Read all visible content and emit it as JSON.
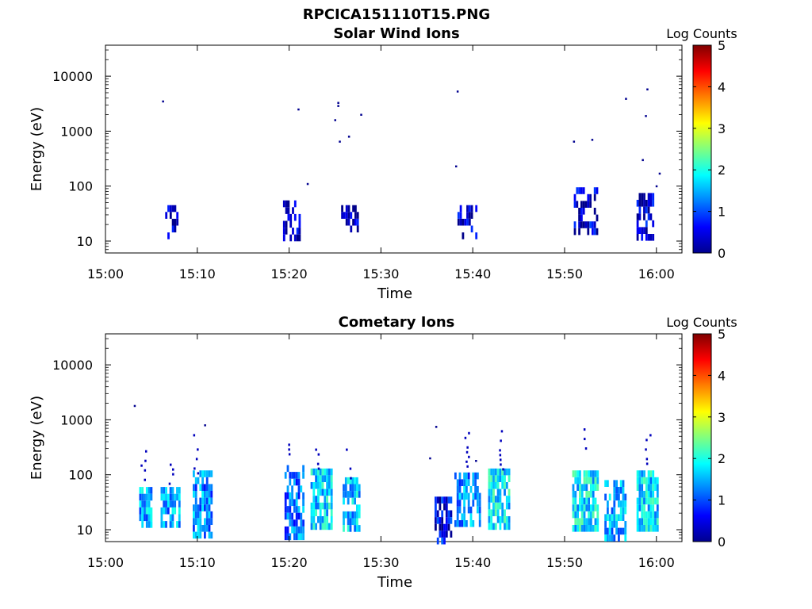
{
  "figure_title": "RPCICA151110T15.PNG",
  "chart_data": [
    {
      "type": "heatmap",
      "title": "Solar Wind Ions",
      "xlabel": "Time",
      "ylabel": "Energy (eV)",
      "x_ticks": [
        "15:00",
        "15:10",
        "15:20",
        "15:30",
        "15:40",
        "15:50",
        "16:00"
      ],
      "y_ticks": [
        "10",
        "100",
        "1000",
        "10000"
      ],
      "y_scale": "log",
      "x_range": [
        "15:00",
        "16:03"
      ],
      "y_range": [
        6,
        45000
      ],
      "colorbar": {
        "label": "Log Counts",
        "ticks": [
          "0",
          "1",
          "2",
          "3",
          "4",
          "5"
        ],
        "range": [
          0,
          5
        ],
        "colormap": "jet"
      },
      "clusters": [
        {
          "t": [
            "15:06:30",
            "15:07:50"
          ],
          "e": [
            12,
            45
          ],
          "level": 0.3,
          "density": 0.5
        },
        {
          "t": [
            "15:19:20",
            "15:21:30"
          ],
          "e": [
            12,
            55
          ],
          "level": 0.3,
          "density": 0.45
        },
        {
          "t": [
            "15:25:40",
            "15:27:30"
          ],
          "e": [
            17,
            45
          ],
          "level": 0.3,
          "density": 0.6
        },
        {
          "t": [
            "15:38:20",
            "15:40:30"
          ],
          "e": [
            11,
            45
          ],
          "level": 0.3,
          "density": 0.45
        },
        {
          "t": [
            "15:51:00",
            "15:53:30"
          ],
          "e": [
            16,
            95
          ],
          "level": 0.4,
          "density": 0.6
        },
        {
          "t": [
            "15:57:50",
            "15:59:40"
          ],
          "e": [
            11,
            75
          ],
          "level": 0.4,
          "density": 0.6
        }
      ],
      "points": [
        {
          "t": "15:06:15",
          "e": 3500
        },
        {
          "t": "15:21:00",
          "e": 2500
        },
        {
          "t": "15:22:00",
          "e": 110
        },
        {
          "t": "15:25:00",
          "e": 1600
        },
        {
          "t": "15:25:20",
          "e": 3300
        },
        {
          "t": "15:25:20",
          "e": 2900
        },
        {
          "t": "15:25:30",
          "e": 650
        },
        {
          "t": "15:26:30",
          "e": 800
        },
        {
          "t": "15:27:50",
          "e": 2000
        },
        {
          "t": "15:38:20",
          "e": 5300
        },
        {
          "t": "15:38:10",
          "e": 230
        },
        {
          "t": "15:51:00",
          "e": 650
        },
        {
          "t": "15:53:00",
          "e": 700
        },
        {
          "t": "15:56:40",
          "e": 3900
        },
        {
          "t": "15:59:00",
          "e": 5800
        },
        {
          "t": "15:58:50",
          "e": 1900
        },
        {
          "t": "15:58:30",
          "e": 300
        },
        {
          "t": "16:00:00",
          "e": 100
        },
        {
          "t": "16:00:20",
          "e": 170
        }
      ]
    },
    {
      "type": "heatmap",
      "title": "Cometary Ions",
      "xlabel": "Time",
      "ylabel": "Energy (eV)",
      "x_ticks": [
        "15:00",
        "15:10",
        "15:20",
        "15:30",
        "15:40",
        "15:50",
        "16:00"
      ],
      "y_ticks": [
        "10",
        "100",
        "1000",
        "10000"
      ],
      "y_scale": "log",
      "x_range": [
        "15:00",
        "16:03"
      ],
      "y_range": [
        6,
        45000
      ],
      "colorbar": {
        "label": "Log Counts",
        "ticks": [
          "0",
          "1",
          "2",
          "3",
          "4",
          "5"
        ],
        "range": [
          0,
          5
        ],
        "colormap": "jet"
      },
      "clusters": [
        {
          "t": [
            "15:03:40",
            "15:05:00"
          ],
          "e": [
            12,
            60
          ],
          "level": 1.5,
          "density": 0.85
        },
        {
          "t": [
            "15:06:00",
            "15:08:10"
          ],
          "e": [
            12,
            60
          ],
          "level": 1.4,
          "density": 0.8
        },
        {
          "t": [
            "15:09:30",
            "15:11:30"
          ],
          "e": [
            7,
            120
          ],
          "level": 1.3,
          "density": 0.75
        },
        {
          "t": [
            "15:19:30",
            "15:21:40"
          ],
          "e": [
            7,
            150
          ],
          "level": 1.2,
          "density": 0.7
        },
        {
          "t": [
            "15:22:20",
            "15:24:40"
          ],
          "e": [
            12,
            130
          ],
          "level": 1.7,
          "density": 0.8
        },
        {
          "t": [
            "15:25:50",
            "15:27:40"
          ],
          "e": [
            12,
            90
          ],
          "level": 1.6,
          "density": 0.8
        },
        {
          "t": [
            "15:35:50",
            "15:37:40"
          ],
          "e": [
            7,
            40
          ],
          "level": 0.6,
          "density": 0.75
        },
        {
          "t": [
            "15:38:00",
            "15:40:50"
          ],
          "e": [
            12,
            110
          ],
          "level": 1.3,
          "density": 0.7
        },
        {
          "t": [
            "15:41:40",
            "15:44:00"
          ],
          "e": [
            12,
            130
          ],
          "level": 1.8,
          "density": 0.8
        },
        {
          "t": [
            "15:50:50",
            "15:53:40"
          ],
          "e": [
            12,
            120
          ],
          "level": 1.8,
          "density": 0.8
        },
        {
          "t": [
            "15:54:20",
            "15:56:40"
          ],
          "e": [
            7,
            80
          ],
          "level": 1.5,
          "density": 0.75
        },
        {
          "t": [
            "15:57:50",
            "16:00:10"
          ],
          "e": [
            12,
            120
          ],
          "level": 1.7,
          "density": 0.8
        }
      ],
      "spikes": [
        {
          "t": "15:04:05",
          "e": [
            60,
            280
          ]
        },
        {
          "t": "15:07:05",
          "e": [
            60,
            160
          ]
        },
        {
          "t": "15:09:45",
          "e": [
            100,
            550
          ]
        },
        {
          "t": "15:19:50",
          "e": [
            150,
            550
          ]
        },
        {
          "t": "15:22:55",
          "e": [
            130,
            300
          ]
        },
        {
          "t": "15:26:25",
          "e": [
            90,
            300
          ]
        },
        {
          "t": "15:39:15",
          "e": [
            110,
            600
          ]
        },
        {
          "t": "15:43:00",
          "e": [
            130,
            650
          ]
        },
        {
          "t": "15:52:05",
          "e": [
            120,
            700
          ]
        },
        {
          "t": "15:59:00",
          "e": [
            120,
            550
          ]
        }
      ],
      "points": [
        {
          "t": "15:03:10",
          "e": 1800
        },
        {
          "t": "15:10:50",
          "e": 800
        },
        {
          "t": "15:35:20",
          "e": 200
        },
        {
          "t": "15:36:00",
          "e": 750
        },
        {
          "t": "15:40:20",
          "e": 180
        }
      ]
    }
  ]
}
